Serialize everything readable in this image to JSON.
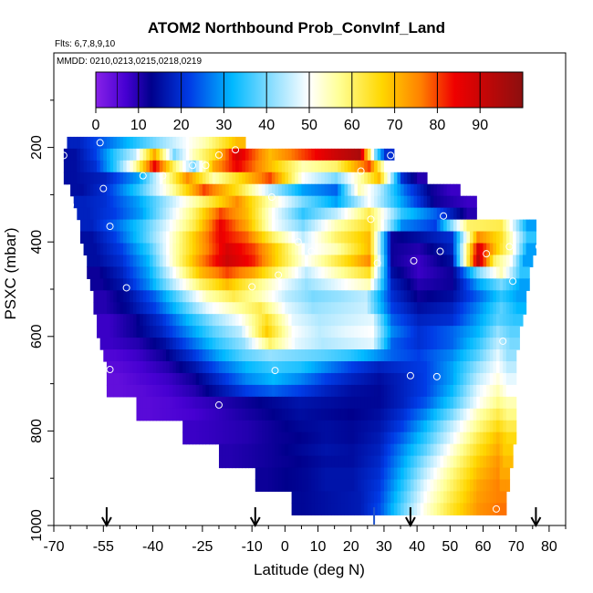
{
  "chart_data": {
    "type": "heatmap",
    "title": "ATOM2 Northbound Prob_ConvInf_Land",
    "flights_note": "Flts: 6,7,8,9,10",
    "dates_note": "MMDD: 0210,0213,0215,0218,0219",
    "xlabel": "Latitude (deg N)",
    "ylabel": "PSXC (mbar)",
    "xlim": [
      -70,
      85
    ],
    "ylim": [
      1000,
      0
    ],
    "x_ticks": [
      -70,
      -55,
      -40,
      -25,
      -10,
      0,
      10,
      20,
      30,
      40,
      50,
      60,
      70,
      80
    ],
    "y_ticks": [
      200,
      400,
      600,
      800,
      1000
    ],
    "colorbar": {
      "ticks": [
        0,
        10,
        20,
        30,
        40,
        50,
        60,
        70,
        80,
        90
      ],
      "range": [
        0,
        100
      ]
    },
    "arrows_lat": [
      -54,
      -9,
      38,
      76
    ],
    "marker_lat": 27,
    "rows": [
      {
        "p": 190,
        "lat": [
          -63,
          -55,
          -45,
          -35,
          -25,
          -15
        ],
        "v": [
          18,
          25,
          35,
          45,
          55,
          70
        ]
      },
      {
        "p": 215,
        "lat": [
          -64,
          -58,
          -52,
          -46,
          -40,
          -34,
          -28,
          -22,
          -15,
          -5,
          5,
          15,
          22,
          27,
          30
        ],
        "v": [
          15,
          22,
          35,
          45,
          72,
          40,
          55,
          65,
          88,
          70,
          80,
          90,
          95,
          40,
          20
        ]
      },
      {
        "p": 240,
        "lat": [
          -64,
          -58,
          -52,
          -46,
          -40,
          -34,
          -28,
          -22,
          -15,
          -5,
          5,
          15,
          25,
          30
        ],
        "v": [
          15,
          20,
          35,
          55,
          85,
          60,
          40,
          72,
          85,
          70,
          55,
          60,
          80,
          50
        ]
      },
      {
        "p": 265,
        "lat": [
          -64,
          -55,
          -45,
          -38,
          -30,
          -22,
          -15,
          -5,
          5,
          15,
          22,
          28,
          35,
          40
        ],
        "v": [
          15,
          18,
          30,
          50,
          75,
          55,
          65,
          80,
          50,
          40,
          55,
          70,
          20,
          10
        ]
      },
      {
        "p": 290,
        "lat": [
          -62,
          -55,
          -45,
          -35,
          -25,
          -15,
          -5,
          5,
          15,
          22,
          28,
          36,
          44,
          50
        ],
        "v": [
          15,
          20,
          35,
          55,
          80,
          65,
          45,
          30,
          25,
          55,
          45,
          25,
          12,
          8
        ]
      },
      {
        "p": 315,
        "lat": [
          -61,
          -55,
          -45,
          -35,
          -25,
          -15,
          -5,
          5,
          15,
          25,
          35,
          45,
          55
        ],
        "v": [
          18,
          20,
          30,
          45,
          60,
          75,
          55,
          40,
          30,
          50,
          30,
          12,
          8
        ]
      },
      {
        "p": 340,
        "lat": [
          -60,
          -52,
          -44,
          -36,
          -28,
          -20,
          -12,
          -4,
          5,
          15,
          25,
          35,
          45,
          55
        ],
        "v": [
          18,
          22,
          30,
          45,
          60,
          80,
          70,
          50,
          35,
          45,
          62,
          35,
          25,
          10
        ]
      },
      {
        "p": 365,
        "lat": [
          -59,
          -52,
          -44,
          -36,
          -28,
          -20,
          -12,
          -4,
          5,
          15,
          25,
          35,
          45,
          55,
          65,
          73
        ],
        "v": [
          18,
          25,
          35,
          48,
          62,
          85,
          72,
          50,
          40,
          55,
          65,
          28,
          22,
          60,
          62,
          30
        ]
      },
      {
        "p": 390,
        "lat": [
          -59,
          -52,
          -44,
          -36,
          -28,
          -20,
          -12,
          -4,
          5,
          15,
          25,
          32,
          40,
          50,
          58,
          65,
          73
        ],
        "v": [
          15,
          22,
          35,
          50,
          68,
          85,
          78,
          60,
          45,
          60,
          70,
          12,
          15,
          20,
          75,
          65,
          35
        ]
      },
      {
        "p": 415,
        "lat": [
          -58,
          -50,
          -42,
          -34,
          -26,
          -18,
          -10,
          -2,
          6,
          15,
          25,
          32,
          40,
          50,
          58,
          63,
          68,
          73
        ],
        "v": [
          15,
          22,
          35,
          55,
          72,
          88,
          80,
          65,
          48,
          55,
          70,
          12,
          10,
          18,
          88,
          70,
          55,
          30
        ]
      },
      {
        "p": 440,
        "lat": [
          -57,
          -50,
          -42,
          -34,
          -26,
          -18,
          -10,
          -2,
          6,
          15,
          25,
          32,
          40,
          50,
          58,
          63,
          68,
          72
        ],
        "v": [
          15,
          20,
          32,
          55,
          75,
          90,
          82,
          65,
          50,
          62,
          75,
          12,
          8,
          15,
          92,
          60,
          50,
          30
        ]
      },
      {
        "p": 465,
        "lat": [
          -57,
          -50,
          -42,
          -34,
          -26,
          -18,
          -10,
          -2,
          6,
          15,
          25,
          32,
          40,
          50,
          58,
          65,
          71
        ],
        "v": [
          12,
          18,
          30,
          50,
          70,
          80,
          72,
          58,
          45,
          55,
          65,
          15,
          8,
          12,
          40,
          55,
          35
        ]
      },
      {
        "p": 490,
        "lat": [
          -56,
          -50,
          -42,
          -34,
          -26,
          -18,
          -10,
          -2,
          6,
          15,
          25,
          32,
          40,
          50,
          58,
          65,
          71
        ],
        "v": [
          12,
          16,
          28,
          45,
          60,
          70,
          60,
          50,
          42,
          48,
          55,
          18,
          10,
          12,
          30,
          40,
          30
        ]
      },
      {
        "p": 515,
        "lat": [
          -55,
          -48,
          -40,
          -32,
          -24,
          -16,
          -8,
          0,
          8,
          16,
          24,
          32,
          40,
          50,
          58,
          65,
          70
        ],
        "v": [
          10,
          15,
          25,
          40,
          55,
          62,
          55,
          45,
          40,
          42,
          45,
          20,
          12,
          15,
          25,
          35,
          30
        ]
      },
      {
        "p": 540,
        "lat": [
          -55,
          -48,
          -40,
          -32,
          -24,
          -16,
          -8,
          0,
          8,
          16,
          24,
          32,
          40,
          50,
          58,
          65,
          70
        ],
        "v": [
          10,
          14,
          22,
          35,
          48,
          55,
          62,
          48,
          42,
          44,
          46,
          22,
          15,
          18,
          28,
          38,
          32
        ]
      },
      {
        "p": 565,
        "lat": [
          -54,
          -46,
          -38,
          -30,
          -22,
          -14,
          -6,
          2,
          10,
          18,
          26,
          32,
          40,
          50,
          58,
          64,
          69
        ],
        "v": [
          8,
          12,
          20,
          32,
          42,
          50,
          65,
          48,
          44,
          46,
          48,
          25,
          18,
          20,
          30,
          38,
          35
        ]
      },
      {
        "p": 590,
        "lat": [
          -54,
          -46,
          -38,
          -30,
          -22,
          -14,
          -6,
          2,
          10,
          18,
          26,
          32,
          40,
          50,
          58,
          64,
          68
        ],
        "v": [
          8,
          12,
          18,
          28,
          38,
          45,
          68,
          50,
          45,
          48,
          50,
          28,
          20,
          25,
          32,
          42,
          38
        ]
      },
      {
        "p": 615,
        "lat": [
          -53,
          -45,
          -37,
          -29,
          -21,
          -13,
          -5,
          3,
          11,
          19,
          26,
          32,
          40,
          50,
          58,
          64,
          68
        ],
        "v": [
          8,
          10,
          15,
          25,
          35,
          42,
          60,
          48,
          44,
          46,
          48,
          25,
          20,
          25,
          35,
          45,
          40
        ]
      },
      {
        "p": 640,
        "lat": [
          -52,
          -45,
          -37,
          -29,
          -21,
          -13,
          -5,
          3,
          11,
          19,
          26,
          32,
          40,
          50,
          58,
          64,
          67
        ],
        "v": [
          6,
          8,
          12,
          20,
          30,
          38,
          42,
          40,
          38,
          35,
          30,
          25,
          22,
          28,
          38,
          48,
          42
        ]
      },
      {
        "p": 665,
        "lat": [
          -51,
          -44,
          -36,
          -28,
          -20,
          -12,
          -4,
          4,
          12,
          20,
          28,
          35,
          42,
          50,
          58,
          64,
          67
        ],
        "v": [
          5,
          7,
          10,
          16,
          25,
          32,
          36,
          34,
          28,
          22,
          18,
          20,
          22,
          30,
          42,
          50,
          45
        ]
      },
      {
        "p": 690,
        "lat": [
          -51,
          -44,
          -36,
          -28,
          -20,
          -12,
          -4,
          4,
          12,
          20,
          28,
          35,
          42,
          50,
          58,
          64,
          67
        ],
        "v": [
          4,
          6,
          8,
          12,
          20,
          28,
          32,
          28,
          22,
          18,
          15,
          18,
          22,
          30,
          45,
          52,
          48
        ]
      },
      {
        "p": 715,
        "lat": [
          -51,
          -44,
          -36,
          -28,
          -20,
          -12,
          -4,
          4,
          12,
          20,
          28,
          35,
          42,
          50,
          58,
          64,
          67
        ],
        "v": [
          4,
          5,
          7,
          10,
          16,
          22,
          25,
          22,
          18,
          15,
          14,
          18,
          22,
          32,
          48,
          55,
          50
        ]
      },
      {
        "p": 740,
        "lat": [
          -42,
          -35,
          -28,
          -20,
          -12,
          -4,
          4,
          12,
          20,
          28,
          35,
          42,
          50,
          58,
          64,
          67
        ],
        "v": [
          5,
          6,
          8,
          10,
          12,
          14,
          16,
          15,
          14,
          14,
          18,
          24,
          35,
          50,
          58,
          55
        ]
      },
      {
        "p": 765,
        "lat": [
          -42,
          -35,
          -28,
          -20,
          -12,
          -4,
          4,
          12,
          20,
          28,
          35,
          42,
          50,
          58,
          64,
          67
        ],
        "v": [
          5,
          6,
          7,
          9,
          11,
          13,
          15,
          14,
          13,
          15,
          20,
          28,
          40,
          55,
          62,
          58
        ]
      },
      {
        "p": 790,
        "lat": [
          -28,
          -20,
          -12,
          -4,
          4,
          12,
          20,
          28,
          35,
          42,
          50,
          58,
          64,
          67
        ],
        "v": [
          8,
          9,
          10,
          12,
          14,
          15,
          14,
          16,
          22,
          32,
          45,
          58,
          66,
          62
        ]
      },
      {
        "p": 815,
        "lat": [
          -28,
          -20,
          -12,
          -4,
          4,
          12,
          20,
          28,
          35,
          42,
          50,
          58,
          64,
          67
        ],
        "v": [
          8,
          9,
          10,
          12,
          13,
          15,
          14,
          17,
          25,
          35,
          48,
          62,
          70,
          66
        ]
      },
      {
        "p": 840,
        "lat": [
          -17,
          -10,
          -4,
          4,
          12,
          20,
          28,
          35,
          42,
          50,
          58,
          64,
          66
        ],
        "v": [
          10,
          11,
          12,
          14,
          16,
          15,
          18,
          28,
          38,
          52,
          65,
          72,
          68
        ]
      },
      {
        "p": 865,
        "lat": [
          -17,
          -10,
          -4,
          4,
          12,
          20,
          28,
          35,
          42,
          50,
          58,
          64,
          66
        ],
        "v": [
          10,
          11,
          12,
          13,
          15,
          15,
          19,
          30,
          42,
          55,
          68,
          74,
          70
        ]
      },
      {
        "p": 890,
        "lat": [
          -6,
          0,
          6,
          12,
          20,
          28,
          35,
          42,
          50,
          58,
          64,
          65
        ],
        "v": [
          12,
          13,
          14,
          16,
          16,
          20,
          32,
          45,
          58,
          70,
          75,
          72
        ]
      },
      {
        "p": 915,
        "lat": [
          -6,
          0,
          6,
          12,
          20,
          28,
          35,
          42,
          50,
          58,
          64,
          65
        ],
        "v": [
          12,
          13,
          14,
          16,
          16,
          21,
          34,
          48,
          60,
          72,
          76,
          74
        ]
      },
      {
        "p": 940,
        "lat": [
          5,
          10,
          16,
          22,
          28,
          35,
          42,
          50,
          58,
          64
        ],
        "v": [
          14,
          15,
          16,
          17,
          22,
          36,
          50,
          62,
          73,
          76
        ]
      },
      {
        "p": 965,
        "lat": [
          5,
          10,
          16,
          22,
          28,
          35,
          42,
          50,
          58,
          64
        ],
        "v": [
          14,
          15,
          16,
          17,
          23,
          38,
          52,
          64,
          74,
          77
        ]
      }
    ],
    "points": [
      [
        -56,
        190
      ],
      [
        -67,
        217
      ],
      [
        -55,
        287
      ],
      [
        -65,
        322
      ],
      [
        -53,
        367
      ],
      [
        -48,
        497
      ],
      [
        -53,
        670
      ],
      [
        -43,
        260
      ],
      [
        -37,
        260
      ],
      [
        -28,
        238
      ],
      [
        -24,
        238
      ],
      [
        -20,
        216
      ],
      [
        -15,
        205
      ],
      [
        -4,
        305
      ],
      [
        4,
        400
      ],
      [
        -10,
        495
      ],
      [
        -2,
        470
      ],
      [
        8,
        420
      ],
      [
        -3,
        672
      ],
      [
        -20,
        745
      ],
      [
        23,
        250
      ],
      [
        26,
        352
      ],
      [
        32,
        217
      ],
      [
        48,
        345
      ],
      [
        28,
        445
      ],
      [
        39,
        440
      ],
      [
        47,
        420
      ],
      [
        61,
        425
      ],
      [
        68,
        410
      ],
      [
        77,
        410
      ],
      [
        69,
        483
      ],
      [
        38,
        683
      ],
      [
        46,
        685
      ],
      [
        66,
        610
      ],
      [
        64,
        965
      ]
    ]
  }
}
